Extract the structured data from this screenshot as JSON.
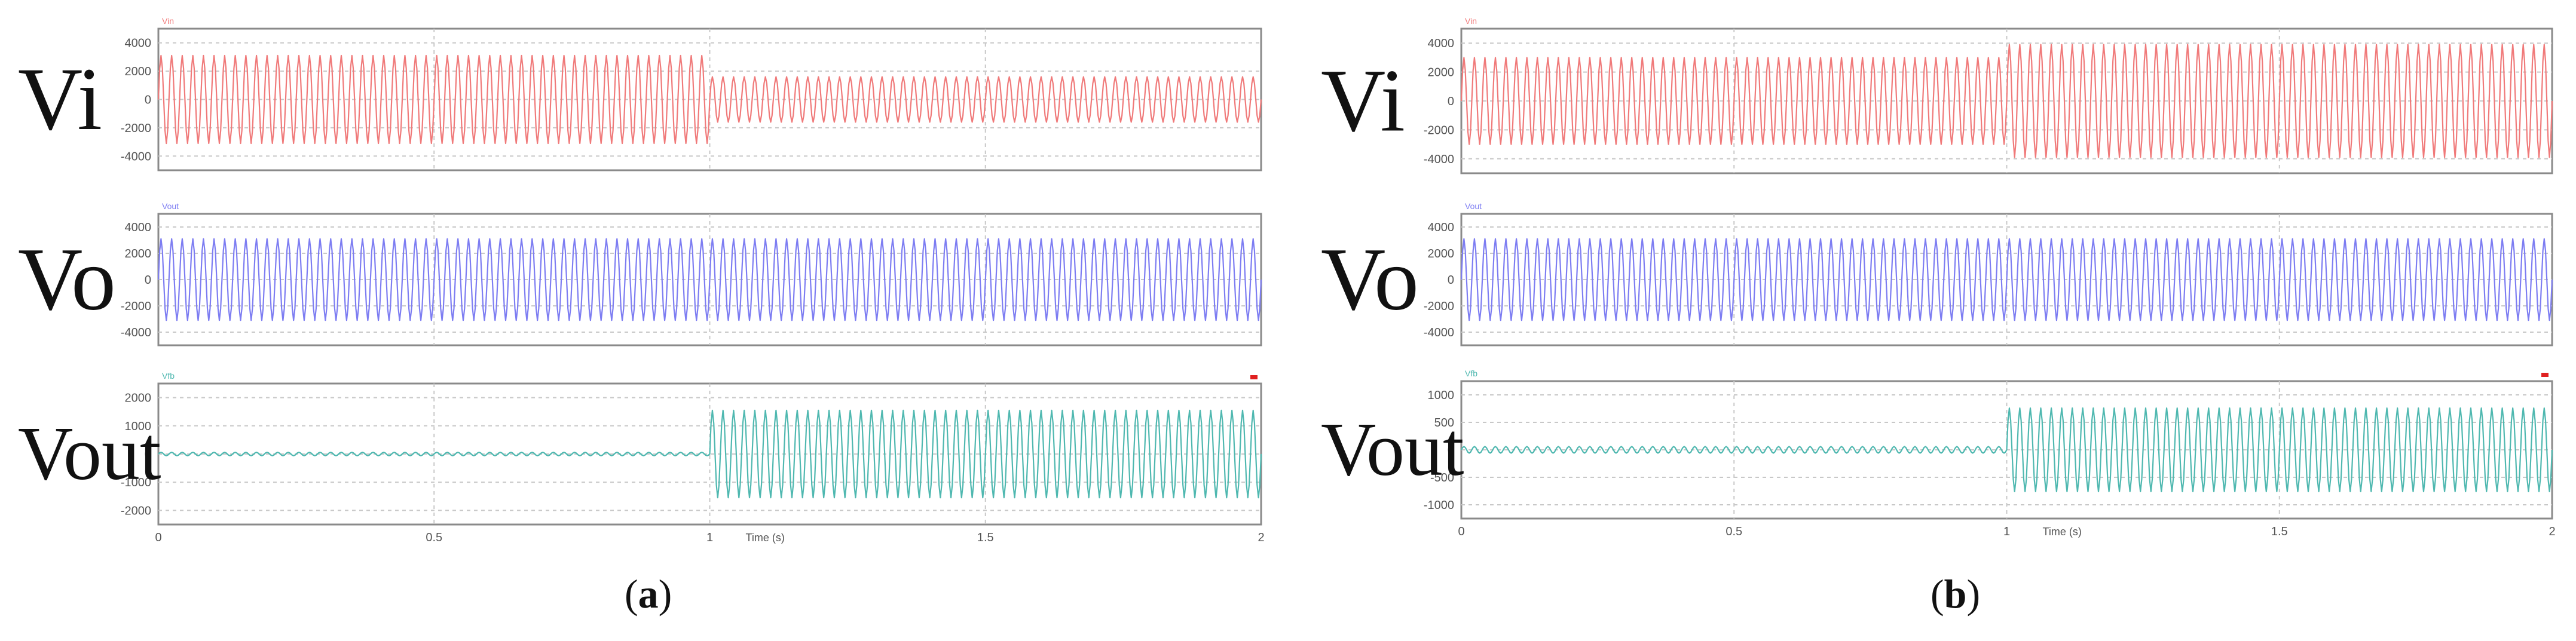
{
  "figure": {
    "captions": [
      {
        "open": "(",
        "letter": "a",
        "close": ")"
      },
      {
        "open": "(",
        "letter": "b",
        "close": ")"
      }
    ]
  },
  "chart_data": [
    {
      "type": "line",
      "panel": "a",
      "x_unit_label": "Time (s)",
      "xlim": [
        0,
        2
      ],
      "x_ticks": [
        0,
        0.5,
        1,
        1.5,
        2
      ],
      "x_tick_labels": [
        "0",
        "0.5",
        "1",
        "1.5",
        "2"
      ],
      "step_time": 1,
      "subplots": [
        {
          "label": "Vi",
          "header": "Vin",
          "color": "#f07a7a",
          "ylim": [
            -5000,
            5000
          ],
          "y_ticks": [
            4000,
            2000,
            0,
            -2000,
            -4000
          ],
          "y_tick_labels": [
            "4000",
            "2000",
            "0",
            "-2000",
            "-4000"
          ],
          "amplitude_before": 3100,
          "amplitude_after": 1600,
          "cycles_per_second": 52
        },
        {
          "label": "Vo",
          "header": "Vout",
          "color": "#7d7df2",
          "ylim": [
            -5000,
            5000
          ],
          "y_ticks": [
            4000,
            2000,
            0,
            -2000,
            -4000
          ],
          "y_tick_labels": [
            "4000",
            "2000",
            "0",
            "-2000",
            "-4000"
          ],
          "amplitude_before": 3100,
          "amplitude_after": 3100,
          "cycles_per_second": 52
        },
        {
          "label": "Vout",
          "header": "Vfb",
          "color": "#4fb8b0",
          "ylim": [
            -2500,
            2500
          ],
          "y_ticks": [
            2000,
            1000,
            0,
            -1000,
            -2000
          ],
          "y_tick_labels": [
            "2000",
            "1000",
            "0",
            "-1000",
            "-2000"
          ],
          "amplitude_before": 60,
          "amplitude_after": 1550,
          "cycles_per_second": 52
        }
      ]
    },
    {
      "type": "line",
      "panel": "b",
      "x_unit_label": "Time (s)",
      "xlim": [
        0,
        2
      ],
      "x_ticks": [
        0,
        0.5,
        1,
        1.5,
        2
      ],
      "x_tick_labels": [
        "0",
        "0.5",
        "1",
        "1.5",
        "2"
      ],
      "step_time": 1,
      "subplots": [
        {
          "label": "Vi",
          "header": "Vin",
          "color": "#f07a7a",
          "ylim": [
            -5000,
            5000
          ],
          "y_ticks": [
            4000,
            2000,
            0,
            -2000,
            -4000
          ],
          "y_tick_labels": [
            "4000",
            "2000",
            "0",
            "-2000",
            "-4000"
          ],
          "amplitude_before": 3000,
          "amplitude_after": 3900,
          "cycles_per_second": 52
        },
        {
          "label": "Vo",
          "header": "Vout",
          "color": "#7d7df2",
          "ylim": [
            -5000,
            5000
          ],
          "y_ticks": [
            4000,
            2000,
            0,
            -2000,
            -4000
          ],
          "y_tick_labels": [
            "4000",
            "2000",
            "0",
            "-2000",
            "-4000"
          ],
          "amplitude_before": 3100,
          "amplitude_after": 3100,
          "cycles_per_second": 52
        },
        {
          "label": "Vout",
          "header": "Vfb",
          "color": "#4fb8b0",
          "ylim": [
            -1250,
            1250
          ],
          "y_ticks": [
            1000,
            500,
            0,
            -500,
            -1000
          ],
          "y_tick_labels": [
            "1000",
            "500",
            "0",
            "-500",
            "-1000"
          ],
          "amplitude_before": 60,
          "amplitude_after": 760,
          "cycles_per_second": 52
        }
      ]
    }
  ]
}
